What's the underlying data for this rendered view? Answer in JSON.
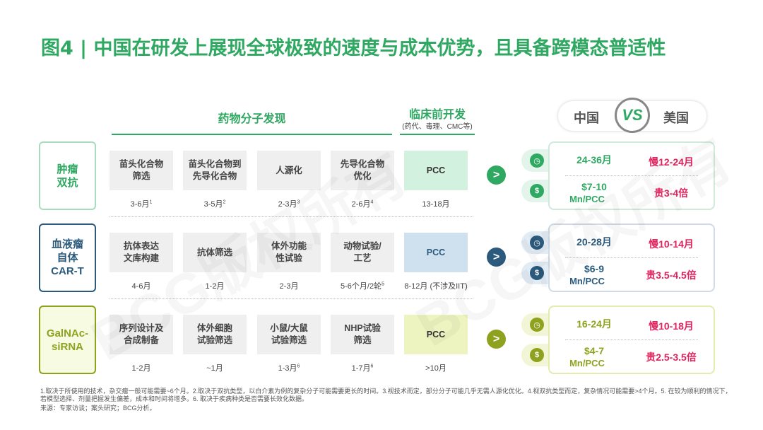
{
  "title": "图4 | 中国在研发上展现全球极致的速度与成本优势，且具备跨模态普适性",
  "headers": {
    "discovery": "药物分子发现",
    "preclinical": "临床前开发",
    "preclinical_sub": "(药代、毒理、CMC等)"
  },
  "versus": {
    "left": "中国",
    "vs": "VS",
    "right": "美国"
  },
  "watermark": "BCG版权所有",
  "colors": {
    "accent": "#2fa862",
    "red": "#e0245e"
  },
  "rows": [
    {
      "label": "肿瘤\n双抗",
      "color": "#2fa862",
      "light": "#d3f1df",
      "labelbg": "#ffffff",
      "steps": [
        {
          "name": "苗头化合物\n筛选",
          "dur": "3-6月",
          "sup": "1"
        },
        {
          "name": "苗头化合物到\n先导化合物",
          "dur": "3-5月",
          "sup": "2"
        },
        {
          "name": "人源化",
          "dur": "2-3月",
          "sup": "3"
        },
        {
          "name": "先导化合物\n优化",
          "dur": "2-6月",
          "sup": "4"
        },
        {
          "name": "PCC",
          "dur": "13-18月",
          "sup": ""
        }
      ],
      "cn_time": "24-36月",
      "us_time": "慢12-24月",
      "cn_cost": "$7-10",
      "cn_cost_unit": "Mn/PCC",
      "us_cost": "贵3-4倍"
    },
    {
      "label": "血液瘤\n自体\nCAR-T",
      "color": "#2b5a7c",
      "light": "#cfe1ef",
      "labelbg": "#ffffff",
      "steps": [
        {
          "name": "抗体表达\n文库构建",
          "dur": "4-6月",
          "sup": ""
        },
        {
          "name": "抗体筛选",
          "dur": "1-2月",
          "sup": ""
        },
        {
          "name": "体外功能\n性试验",
          "dur": "2-3月",
          "sup": ""
        },
        {
          "name": "动物试验/\n工艺",
          "dur": "5-6个月/2轮",
          "sup": "5"
        },
        {
          "name": "PCC",
          "dur": "8-12月 (不涉及IIT)",
          "sup": ""
        }
      ],
      "cn_time": "20-28月",
      "us_time": "慢10-14月",
      "cn_cost": "$6-9",
      "cn_cost_unit": "Mn/PCC",
      "us_cost": "贵3.5-4.5倍"
    },
    {
      "label": "GalNAc-\nsiRNA",
      "color": "#8ea21f",
      "light": "#eef4bf",
      "labelbg": "#f7fbe2",
      "steps": [
        {
          "name": "序列设计及\n合成制备",
          "dur": "1-2月",
          "sup": ""
        },
        {
          "name": "体外细胞\n试验筛选",
          "dur": "~1月",
          "sup": ""
        },
        {
          "name": "小鼠/大鼠\n试验筛选",
          "dur": "1-3月",
          "sup": "6"
        },
        {
          "name": "NHP试验\n筛选",
          "dur": "1-7月",
          "sup": "6"
        },
        {
          "name": "PCC",
          "dur": ">10月",
          "sup": ""
        }
      ],
      "cn_time": "16-24月",
      "us_time": "慢10-18月",
      "cn_cost": "$4-7",
      "cn_cost_unit": "Mn/PCC",
      "us_cost": "贵2.5-3.5倍"
    }
  ],
  "footnotes": [
    "1.取决于所使用的技术，杂交瘤一般可能需要~6个月。2.取决于双抗类型，以白介素为例的复杂分子可能需要更长的时间。3.视技术而定，部分分子可能几乎无需人源化优化。4.视双抗类型而定，复杂情况可能需要>4个月。5. 在较为顺利的情况下，若模型选择、剂量把握发生偏差，成本和时间将增多。6. 取决于疾病种类是否需要长效化数据。",
    "来源：专家访谈；案头研究；BCG分析。"
  ]
}
